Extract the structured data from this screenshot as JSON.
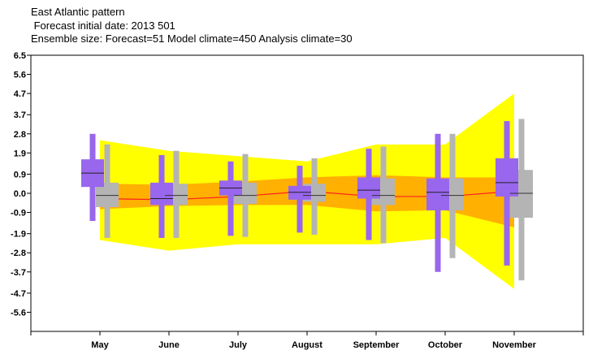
{
  "header": {
    "line1": "East Atlantic pattern",
    "line2": " Forecast initial date: 2013 501",
    "line3": "Ensemble size: Forecast=51 Model climate=450 Analysis climate=30"
  },
  "colors": {
    "climate_outer": "#ffff00",
    "climate_inner": "#ffb000",
    "forecast_box": "#9966ee",
    "model_box": "#b4b4b4",
    "analysis_line": "#ff2020"
  },
  "chart_data": {
    "type": "boxplot",
    "title": "East Atlantic pattern",
    "categories": [
      "May",
      "June",
      "July",
      "August",
      "September",
      "October",
      "November"
    ],
    "ylim": [
      -6.5,
      6.5
    ],
    "yticks": [
      6.5,
      5.6,
      4.7,
      3.7,
      2.8,
      1.9,
      0.9,
      0.0,
      -0.9,
      -1.9,
      -2.8,
      -3.7,
      -4.7,
      -5.6
    ],
    "ytick_labels": [
      "6.5",
      "5.6",
      "4.7",
      "3.7",
      "2.8",
      "1.9",
      "0.9",
      "0.0",
      "-0.9",
      "-1.9",
      "-2.8",
      "-3.7",
      "-4.7",
      "-5.6"
    ],
    "analysis_climate_bands": {
      "outer_upper": [
        2.5,
        2.0,
        1.75,
        1.5,
        2.3,
        2.3,
        4.7
      ],
      "outer_lower": [
        -2.2,
        -2.7,
        -2.4,
        -2.4,
        -2.4,
        -2.1,
        -4.5
      ],
      "inner_upper": [
        0.45,
        0.4,
        0.55,
        0.75,
        0.85,
        0.75,
        0.75
      ],
      "inner_lower": [
        -0.75,
        -0.6,
        -0.55,
        -0.55,
        -0.85,
        -0.8,
        -1.6
      ],
      "median": [
        -0.25,
        -0.3,
        -0.15,
        0.1,
        -0.15,
        -0.15,
        0.1
      ]
    },
    "series": [
      {
        "name": "Forecast",
        "whisker_high": [
          2.8,
          1.8,
          1.5,
          1.3,
          2.1,
          2.8,
          3.4
        ],
        "box_high": [
          1.6,
          0.5,
          0.6,
          0.35,
          0.75,
          0.7,
          1.65
        ],
        "median": [
          0.95,
          -0.25,
          0.25,
          0.05,
          0.15,
          0.05,
          0.5
        ],
        "box_low": [
          0.3,
          -0.55,
          -0.1,
          -0.3,
          -0.25,
          -0.8,
          -0.15
        ],
        "whisker_low": [
          -1.3,
          -2.1,
          -2.0,
          -1.85,
          -2.2,
          -3.7,
          -3.4
        ]
      },
      {
        "name": "Model climate",
        "whisker_high": [
          2.3,
          2.0,
          1.85,
          1.65,
          2.2,
          2.8,
          3.5
        ],
        "box_high": [
          0.5,
          0.45,
          0.5,
          0.45,
          0.7,
          0.7,
          1.1
        ],
        "median": [
          -0.1,
          -0.1,
          -0.1,
          -0.1,
          -0.1,
          -0.1,
          0.0
        ],
        "box_low": [
          -0.65,
          -0.55,
          -0.5,
          -0.4,
          -0.55,
          -0.8,
          -1.15
        ],
        "whisker_low": [
          -2.1,
          -2.1,
          -2.05,
          -1.95,
          -2.35,
          -3.05,
          -4.1
        ]
      }
    ]
  }
}
